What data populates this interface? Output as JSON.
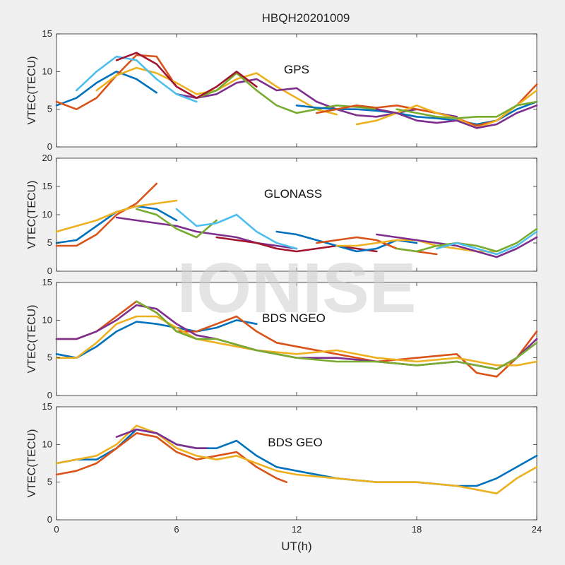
{
  "figure": {
    "title": "HBQH20201009",
    "xlabel": "UT(h)",
    "watermark": "IONISE",
    "xlim": [
      0,
      24
    ],
    "xticks": [
      "0",
      "6",
      "12",
      "18",
      "24"
    ],
    "colors": [
      "#0072BD",
      "#D95319",
      "#EDB120",
      "#7E2F8E",
      "#77AC30",
      "#4DBEEE",
      "#A2142F"
    ]
  },
  "chart_data": [
    {
      "type": "line",
      "title": "GPS",
      "ylabel": "VTEC(TECU)",
      "ylim": [
        0,
        15
      ],
      "yticks": [
        "0",
        "5",
        "10",
        "15"
      ],
      "series": [
        {
          "x": [
            0,
            1,
            2,
            3,
            4,
            5
          ],
          "y": [
            5.5,
            6.5,
            8.5,
            10,
            9,
            7.2
          ]
        },
        {
          "x": [
            0,
            1,
            2,
            3,
            4,
            5,
            6
          ],
          "y": [
            6,
            5,
            6.5,
            9.5,
            12.2,
            12,
            8
          ]
        },
        {
          "x": [
            2,
            3,
            4,
            5,
            6,
            7,
            8,
            9,
            10,
            11,
            12,
            13,
            14
          ],
          "y": [
            7.5,
            9.5,
            10.5,
            9.8,
            8.5,
            7,
            7.5,
            9,
            9.8,
            8,
            6.5,
            5,
            4.3
          ]
        },
        {
          "x": [
            6,
            7,
            8,
            9,
            10,
            11,
            12,
            13,
            14,
            15,
            16,
            17,
            18,
            19,
            20
          ],
          "y": [
            7,
            6.5,
            7,
            8.5,
            9,
            7.5,
            7.8,
            6,
            5,
            4.2,
            4,
            4.5,
            5,
            4.5,
            4
          ]
        },
        {
          "x": [
            7,
            8,
            9,
            10,
            11,
            12,
            13,
            14,
            15,
            16,
            17,
            18
          ],
          "y": [
            6.5,
            7.5,
            9.8,
            7.5,
            5.5,
            4.5,
            5,
            5.5,
            5.3,
            5,
            4.5,
            4
          ]
        },
        {
          "x": [
            1,
            2,
            3,
            4,
            5,
            6,
            7
          ],
          "y": [
            7.5,
            10,
            12,
            11.5,
            9,
            7,
            6
          ]
        },
        {
          "x": [
            3,
            4,
            5,
            6,
            7,
            8,
            9,
            10
          ],
          "y": [
            11.5,
            12.5,
            11,
            8,
            6.5,
            8,
            10,
            8
          ]
        },
        {
          "x": [
            12,
            13,
            14,
            15,
            16,
            17,
            18,
            19,
            20,
            21,
            22,
            23,
            24
          ],
          "y": [
            5.5,
            5.2,
            5,
            5,
            4.8,
            4.5,
            4,
            3.8,
            3.5,
            3,
            3.5,
            5,
            6
          ]
        },
        {
          "x": [
            13,
            14,
            15,
            16,
            17,
            18,
            19,
            20,
            21,
            22,
            23,
            24
          ],
          "y": [
            4.5,
            5,
            5.5,
            5.2,
            5.5,
            5,
            4.5,
            3.8,
            2.8,
            3.5,
            5.5,
            8.3
          ]
        },
        {
          "x": [
            15,
            16,
            17,
            18,
            19,
            20,
            21,
            22,
            23,
            24
          ],
          "y": [
            3,
            3.5,
            4.5,
            5.5,
            4.5,
            3.8,
            2.5,
            3.5,
            5.5,
            7.5
          ]
        },
        {
          "x": [
            16,
            17,
            18,
            19,
            20,
            21,
            22,
            23,
            24
          ],
          "y": [
            5,
            4.5,
            3.5,
            3.2,
            3.5,
            2.5,
            3,
            4.5,
            5.5
          ]
        },
        {
          "x": [
            17,
            18,
            19,
            20,
            21,
            22,
            23,
            24
          ],
          "y": [
            5,
            4.5,
            4,
            3.8,
            4,
            4,
            5.5,
            6
          ]
        }
      ]
    },
    {
      "type": "line",
      "title": "GLONASS",
      "ylabel": "VTEC(TECU)",
      "ylim": [
        0,
        20
      ],
      "yticks": [
        "0",
        "5",
        "10",
        "15",
        "20"
      ],
      "series": [
        {
          "x": [
            0,
            1,
            2,
            3,
            4,
            5,
            6
          ],
          "y": [
            5,
            5.5,
            8,
            10.5,
            11.5,
            11,
            9
          ]
        },
        {
          "x": [
            0,
            1,
            2,
            3,
            4,
            5
          ],
          "y": [
            4.5,
            4.5,
            6.5,
            10,
            12,
            15.5
          ]
        },
        {
          "x": [
            0,
            1,
            2,
            3,
            4,
            5,
            6
          ],
          "y": [
            7,
            8,
            9,
            10.5,
            11.5,
            12,
            12.5
          ]
        },
        {
          "x": [
            3,
            4,
            5,
            6,
            7,
            8,
            9,
            10,
            11,
            12
          ],
          "y": [
            9.5,
            9,
            8.5,
            8,
            7,
            6.5,
            6,
            5,
            4.5,
            4
          ]
        },
        {
          "x": [
            4,
            5,
            6,
            7,
            8
          ],
          "y": [
            11,
            10,
            7.5,
            6,
            9
          ]
        },
        {
          "x": [
            6,
            7,
            8,
            9,
            10,
            11,
            12
          ],
          "y": [
            11,
            8,
            8.5,
            10,
            7,
            5,
            4
          ]
        },
        {
          "x": [
            8,
            9,
            10,
            11,
            12,
            13,
            14,
            15,
            16
          ],
          "y": [
            6,
            5.5,
            5,
            4,
            3.5,
            4,
            4.5,
            4,
            3.5
          ]
        },
        {
          "x": [
            11,
            12,
            13,
            14,
            15,
            16,
            17,
            18
          ],
          "y": [
            7,
            6.5,
            5.5,
            4.5,
            3.5,
            4,
            5.5,
            5
          ]
        },
        {
          "x": [
            13,
            14,
            15,
            16,
            17,
            18,
            19
          ],
          "y": [
            5,
            5.5,
            6,
            5.5,
            4,
            3.5,
            3
          ]
        },
        {
          "x": [
            14,
            15,
            16,
            17,
            18,
            19,
            20,
            21,
            22
          ],
          "y": [
            4.5,
            4.5,
            5,
            5.5,
            5.5,
            4.5,
            4,
            3.5,
            3.5
          ]
        },
        {
          "x": [
            16,
            17,
            18,
            19,
            20,
            21,
            22,
            23,
            24
          ],
          "y": [
            6.5,
            6,
            5.5,
            5,
            4.5,
            3.5,
            2.5,
            4,
            6
          ]
        },
        {
          "x": [
            17,
            18,
            19,
            20,
            21,
            22,
            23,
            24
          ],
          "y": [
            4,
            3.5,
            4.5,
            5,
            4.5,
            3.5,
            5,
            7.5
          ]
        },
        {
          "x": [
            19,
            20,
            21,
            22,
            23,
            24
          ],
          "y": [
            4,
            5,
            4,
            3,
            4.5,
            7
          ]
        }
      ]
    },
    {
      "type": "line",
      "title": "BDS NGEO",
      "ylabel": "VTEC(TECU)",
      "ylim": [
        0,
        15
      ],
      "yticks": [
        "0",
        "5",
        "10",
        "15"
      ],
      "series": [
        {
          "x": [
            0,
            1,
            2,
            3,
            4,
            5,
            6,
            7,
            8,
            9,
            10
          ],
          "y": [
            5.5,
            5,
            6.5,
            8.5,
            9.8,
            9.5,
            9,
            8.5,
            9,
            10,
            9.5
          ]
        },
        {
          "x": [
            0,
            1,
            2,
            3,
            4,
            5,
            6,
            7,
            8,
            9,
            10,
            11,
            12,
            14,
            16,
            18,
            20,
            21,
            22,
            23,
            24
          ],
          "y": [
            7.5,
            7.5,
            8.5,
            10.5,
            12.5,
            11,
            8.5,
            8.5,
            9.5,
            10.5,
            8.5,
            7,
            6.5,
            5.5,
            4.5,
            5,
            5.5,
            3,
            2.5,
            5,
            8.5
          ]
        },
        {
          "x": [
            0,
            1,
            2,
            3,
            4,
            5,
            6,
            7,
            8,
            10,
            12,
            14,
            16,
            18,
            20,
            22,
            23,
            24
          ],
          "y": [
            5,
            5,
            7,
            9.5,
            10.5,
            10.5,
            9,
            7.5,
            7,
            6,
            5.5,
            6,
            5,
            4.5,
            5,
            4,
            4,
            4.5
          ]
        },
        {
          "x": [
            0,
            1,
            2,
            3,
            4,
            5,
            6,
            7,
            8,
            10,
            12,
            14,
            16,
            18,
            20,
            22,
            23,
            24
          ],
          "y": [
            7.5,
            7.5,
            8.5,
            10,
            12,
            11.5,
            9.5,
            8,
            7.5,
            6,
            5,
            5,
            4.5,
            4,
            4.5,
            3.5,
            5,
            7.5
          ]
        },
        {
          "x": [
            4,
            5,
            6,
            7,
            8,
            10,
            12,
            14,
            16,
            18,
            20,
            22,
            23,
            24
          ],
          "y": [
            12.5,
            11,
            8.5,
            7.5,
            7.5,
            6,
            5,
            4.5,
            4.5,
            4,
            4.5,
            3.5,
            5,
            7
          ]
        }
      ]
    },
    {
      "type": "line",
      "title": "BDS GEO",
      "ylabel": "VTEC(TECU)",
      "ylim": [
        0,
        15
      ],
      "yticks": [
        "0",
        "5",
        "10",
        "15"
      ],
      "series": [
        {
          "x": [
            0,
            1,
            2,
            3,
            4,
            5,
            6,
            7,
            8,
            9,
            10,
            11,
            12,
            14,
            16,
            18,
            20,
            21,
            22,
            23,
            24
          ],
          "y": [
            7.5,
            8,
            8,
            9.5,
            12,
            11.5,
            10,
            9.5,
            9.5,
            10.5,
            8.5,
            7,
            6.5,
            5.5,
            5,
            5,
            4.5,
            4.5,
            5.5,
            7,
            8.5
          ]
        },
        {
          "x": [
            0,
            1,
            2,
            3,
            4,
            5,
            6,
            7,
            8,
            9,
            10,
            11,
            11.5
          ],
          "y": [
            6,
            6.5,
            7.5,
            9.5,
            11.5,
            11,
            9,
            8,
            8.5,
            9,
            7,
            5.5,
            5
          ]
        },
        {
          "x": [
            0,
            1,
            2,
            3,
            4,
            5,
            6,
            7,
            8,
            9,
            10,
            11,
            12,
            14,
            16,
            18,
            20,
            21,
            22,
            23,
            24
          ],
          "y": [
            7.5,
            8,
            8.5,
            10,
            12.5,
            11.5,
            9.5,
            8.5,
            8,
            8.5,
            7.5,
            6.5,
            6,
            5.5,
            5,
            5,
            4.5,
            4,
            3.5,
            5.5,
            7
          ]
        },
        {
          "x": [
            3,
            4,
            5,
            6,
            7,
            7.5
          ],
          "y": [
            11,
            12,
            11.5,
            10,
            9.5,
            9.5
          ]
        }
      ]
    }
  ]
}
